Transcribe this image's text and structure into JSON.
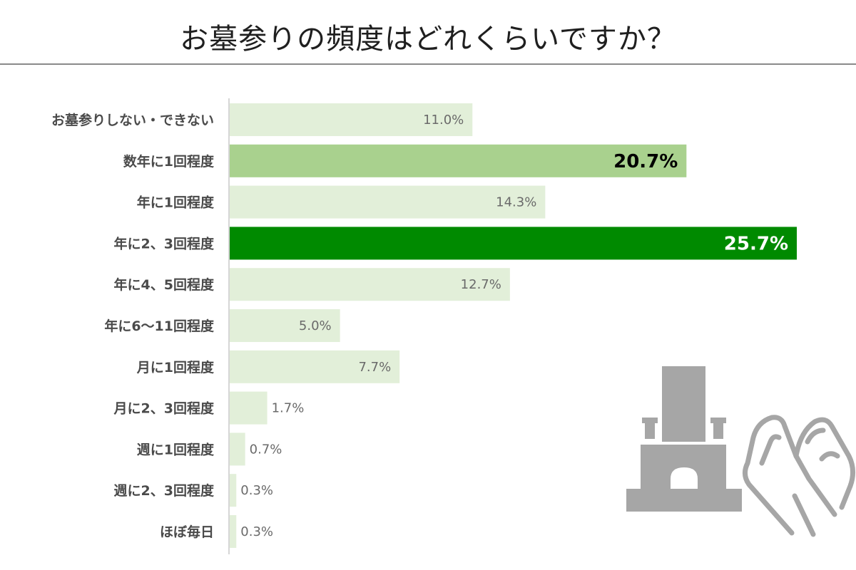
{
  "title": "お墓参りの頻度はどれくらいですか？",
  "chart_data": {
    "type": "bar",
    "orientation": "horizontal",
    "title": "お墓参りの頻度はどれくらいですか？",
    "categories": [
      "お墓参りしない・できない",
      "数年に1回程度",
      "年に1回程度",
      "年に2、3回程度",
      "年に4、5回程度",
      "年に6～11回程度",
      "月に1回程度",
      "月に2、3回程度",
      "週に1回程度",
      "週に2、3回程度",
      "ほぼ毎日"
    ],
    "values": [
      11.0,
      20.7,
      14.3,
      25.7,
      12.7,
      5.0,
      7.7,
      1.7,
      0.7,
      0.3,
      0.3
    ],
    "value_labels": [
      "11.0%",
      "20.7%",
      "14.3%",
      "25.7%",
      "12.7%",
      "5.0%",
      "7.7%",
      "1.7%",
      "0.7%",
      "0.3%",
      "0.3%"
    ],
    "unit": "%",
    "xlim": [
      0,
      25.7
    ],
    "grid": false,
    "legend": "none",
    "colors": {
      "default": "#e2efd9",
      "second": "#a9d18e",
      "highest": "#008a00",
      "axis": "#c8c8c8",
      "label_default": "#6a6a6a",
      "label_second": "#000000",
      "label_highest": "#ffffff",
      "illustration": "#a6a6a6"
    }
  },
  "illustration": {
    "icons": [
      "grave-icon",
      "praying-hands-icon"
    ]
  }
}
